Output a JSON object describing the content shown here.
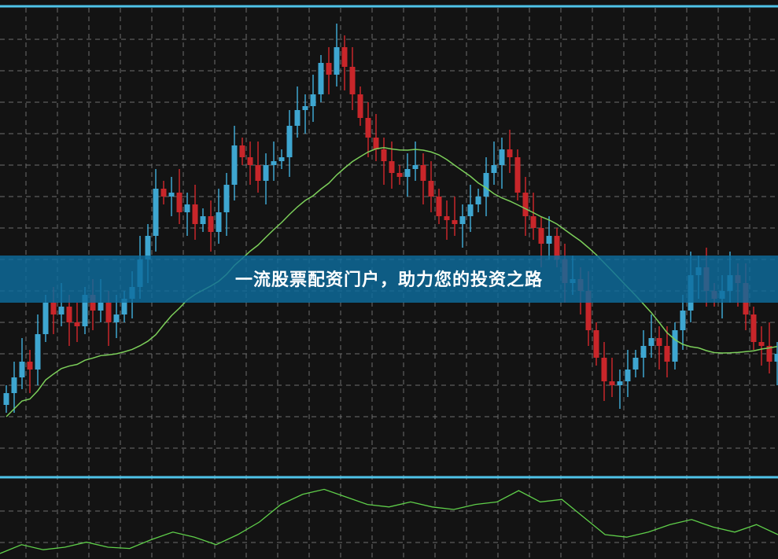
{
  "banner": {
    "title": "一流股票配资门户，助力您的投资之路"
  },
  "colors": {
    "background": "#131313",
    "up": "#3ea6d0",
    "down": "#c8262a",
    "moving_average": "#7ccf5a",
    "indicator": "#5fcf4a",
    "panel_border": "#4fc3e8",
    "grid": "#6e6e6e",
    "banner": "#0e6c9e"
  },
  "chart_data": [
    {
      "type": "candlestick",
      "title": "",
      "grid": true,
      "overlay": "moving-average",
      "closes": [
        12,
        16,
        20,
        18,
        27,
        35,
        32,
        34,
        30,
        29,
        37,
        33,
        35,
        30,
        32,
        36,
        39,
        46,
        52,
        64,
        62,
        63,
        58,
        60,
        55,
        57,
        53,
        58,
        65,
        75,
        72,
        70,
        66,
        70,
        71,
        72,
        80,
        84,
        85,
        88,
        96,
        93,
        100,
        95,
        88,
        82,
        77,
        74,
        71,
        68,
        67,
        69,
        70,
        66,
        62,
        57,
        56,
        55,
        57,
        60,
        62,
        68,
        70,
        74,
        72,
        63,
        57,
        54,
        50,
        52,
        46,
        40,
        41,
        38,
        28,
        21,
        15,
        14,
        15,
        18,
        21,
        24,
        26,
        24,
        20,
        28,
        33,
        42,
        44,
        38,
        36,
        38,
        42,
        40,
        32,
        25,
        24,
        20,
        22
      ]
    },
    {
      "type": "line",
      "title": "",
      "grid": true,
      "values": [
        5,
        12,
        8,
        10,
        14,
        10,
        9,
        16,
        22,
        18,
        12,
        20,
        30,
        44,
        52,
        56,
        50,
        44,
        42,
        46,
        42,
        40,
        44,
        46,
        55,
        46,
        48,
        34,
        20,
        18,
        22,
        28,
        32,
        26,
        22,
        28,
        20
      ]
    }
  ]
}
